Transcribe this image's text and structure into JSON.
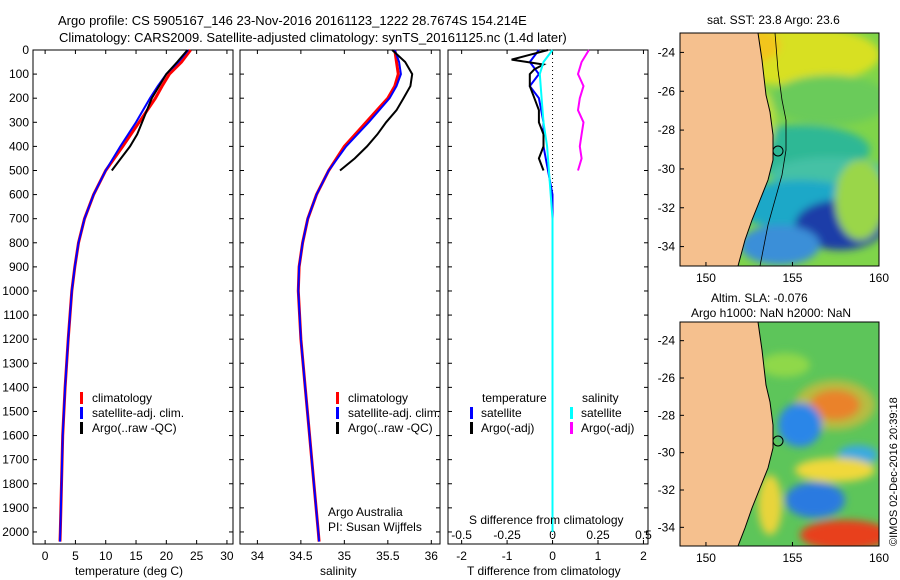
{
  "header": {
    "line1": "Argo profile: CS 5905167_146 23-Nov-2016 20161123_1222 28.7674S 154.214E",
    "line2": "Climatology: CARS2009. Satellite-adjusted climatology: synTS_20161125.nc (1.4d later)"
  },
  "colors": {
    "climatology": "#ff0000",
    "satellite": "#0000ff",
    "argo": "#000000",
    "satellite_salinity": "#00ffff",
    "argo_salinity": "#ff00ff",
    "land": "#f5c08e"
  },
  "depth_ticks": [
    "0",
    "100",
    "200",
    "300",
    "400",
    "500",
    "600",
    "700",
    "800",
    "900",
    "1000",
    "1100",
    "1200",
    "1300",
    "1400",
    "1500",
    "1600",
    "1700",
    "1800",
    "1900",
    "2000"
  ],
  "chart_data": [
    {
      "type": "line",
      "panel": "temperature",
      "xlabel": "temperature (deg C)",
      "xlim": [
        -2,
        31
      ],
      "ylim": [
        2050,
        0
      ],
      "xticks": [
        "0",
        "5",
        "10",
        "15",
        "20",
        "25",
        "30"
      ],
      "legend": [
        "climatology",
        "satellite-adj. clim.",
        "Argo(..raw -QC)"
      ],
      "depth": [
        0,
        50,
        100,
        150,
        200,
        300,
        400,
        500,
        600,
        700,
        800,
        900,
        1000,
        1200,
        1400,
        1600,
        1800,
        2000,
        2040
      ],
      "series": [
        {
          "name": "climatology",
          "values": [
            24.0,
            22.5,
            20.5,
            19.3,
            18.2,
            15.5,
            12.8,
            10.0,
            8.0,
            6.5,
            5.5,
            4.9,
            4.4,
            3.8,
            3.3,
            2.9,
            2.7,
            2.5,
            2.45
          ]
        },
        {
          "name": "satellite-adj. clim.",
          "values": [
            23.6,
            22.0,
            20.0,
            18.6,
            17.3,
            15.0,
            12.4,
            10.0,
            8.0,
            6.5,
            5.5,
            4.9,
            4.4,
            3.8,
            3.3,
            2.9,
            2.7,
            2.5,
            2.45
          ]
        },
        {
          "name": "Argo(..raw -QC)",
          "depth": [
            0,
            50,
            100,
            150,
            200,
            250,
            300,
            350,
            400,
            450,
            500
          ],
          "values": [
            23.5,
            21.8,
            20.0,
            18.8,
            17.6,
            16.8,
            16.0,
            15.2,
            14.0,
            12.5,
            11.0
          ]
        }
      ]
    },
    {
      "type": "line",
      "panel": "salinity",
      "xlabel": "salinity",
      "xlim": [
        33.8,
        36.1
      ],
      "ylim": [
        2050,
        0
      ],
      "xticks": [
        "34",
        "34.5",
        "35",
        "35.5",
        "36"
      ],
      "legend": [
        "climatology",
        "satellite-adj. clim.",
        "Argo(..raw -QC)"
      ],
      "annotation": [
        "Argo Australia",
        "PI: Susan Wijffels"
      ],
      "depth": [
        0,
        50,
        100,
        150,
        200,
        300,
        400,
        500,
        600,
        700,
        800,
        900,
        1000,
        1200,
        1400,
        1600,
        1800,
        2000,
        2040
      ],
      "series": [
        {
          "name": "climatology",
          "values": [
            35.58,
            35.6,
            35.62,
            35.58,
            35.5,
            35.25,
            35.0,
            34.82,
            34.68,
            34.58,
            34.52,
            34.48,
            34.47,
            34.5,
            34.55,
            34.6,
            34.65,
            34.7,
            34.71
          ]
        },
        {
          "name": "satellite-adj. clim.",
          "values": [
            35.58,
            35.63,
            35.65,
            35.6,
            35.52,
            35.28,
            35.02,
            34.82,
            34.68,
            34.58,
            34.52,
            34.48,
            34.47,
            34.5,
            34.55,
            34.6,
            34.65,
            34.7,
            34.71
          ]
        },
        {
          "name": "Argo(..raw -QC)",
          "depth": [
            0,
            50,
            100,
            150,
            200,
            250,
            300,
            350,
            400,
            450,
            500
          ],
          "values": [
            35.55,
            35.7,
            35.78,
            35.76,
            35.68,
            35.6,
            35.48,
            35.38,
            35.26,
            35.12,
            34.95
          ]
        }
      ]
    },
    {
      "type": "line",
      "panel": "difference",
      "xlabel": "T difference from climatology",
      "x2label": "S difference from climatology",
      "xlim": [
        -2.3,
        2.1
      ],
      "ylim": [
        2050,
        0
      ],
      "xticks": [
        "-2",
        "-1",
        "0",
        "1",
        "2"
      ],
      "x2ticks": [
        "-0.5",
        "-0.25",
        "0",
        "0.25",
        "0.5"
      ],
      "legend_temperature": [
        "temperature",
        "satellite",
        "Argo(-adj)"
      ],
      "legend_salinity": [
        "salinity",
        "satellite",
        "Argo(-adj)"
      ],
      "series": [
        {
          "name": "temperature satellite",
          "depth": [
            0,
            50,
            100,
            150,
            200,
            300,
            400,
            500,
            600,
            700,
            800,
            1000,
            1500,
            2000
          ],
          "values": [
            -0.3,
            -0.5,
            -0.3,
            -0.5,
            -0.3,
            -0.2,
            -0.2,
            -0.1,
            0.0,
            0.0,
            0.0,
            0.0,
            0.0,
            0.0
          ]
        },
        {
          "name": "temperature Argo(-adj)",
          "depth": [
            0,
            20,
            40,
            60,
            80,
            100,
            150,
            200,
            250,
            300,
            350,
            400,
            450,
            500
          ],
          "values": [
            -0.1,
            -0.5,
            -0.9,
            -0.2,
            -0.4,
            -0.5,
            -0.5,
            -0.4,
            -0.3,
            -0.3,
            -0.2,
            -0.2,
            -0.3,
            -0.2
          ]
        },
        {
          "name": "salinity satellite",
          "depth": [
            0,
            50,
            100,
            200,
            300,
            400,
            500,
            700,
            1000,
            1500,
            2000
          ],
          "values": [
            0.0,
            -0.05,
            -0.07,
            -0.06,
            -0.05,
            -0.03,
            -0.02,
            0.0,
            0.0,
            0.0,
            0.0
          ]
        },
        {
          "name": "salinity Argo(-adj)",
          "depth": [
            0,
            50,
            100,
            150,
            200,
            250,
            300,
            350,
            400,
            450,
            500
          ],
          "values": [
            0.2,
            0.16,
            0.14,
            0.17,
            0.15,
            0.14,
            0.17,
            0.16,
            0.15,
            0.16,
            0.14
          ]
        }
      ]
    },
    {
      "type": "heatmap",
      "panel": "map-sst",
      "title": "sat. SST: 23.8 Argo: 23.6",
      "xticks": [
        "150",
        "155",
        "160"
      ],
      "yticks": [
        "-24",
        "-26",
        "-28",
        "-30",
        "-32",
        "-34"
      ],
      "xlim": [
        148.5,
        160
      ],
      "ylim": [
        -35,
        -23
      ]
    },
    {
      "type": "heatmap",
      "panel": "map-sla",
      "title_line1": "Altim. SLA: -0.076",
      "title_line2": "Argo h1000: NaN h2000: NaN",
      "xticks": [
        "150",
        "155",
        "160"
      ],
      "yticks": [
        "-24",
        "-26",
        "-28",
        "-30",
        "-32",
        "-34"
      ],
      "xlim": [
        148.5,
        160
      ],
      "ylim": [
        -35,
        -23
      ]
    }
  ],
  "footer": {
    "stamp": "©IMOS 02-Dec-2016 20:39:18"
  }
}
